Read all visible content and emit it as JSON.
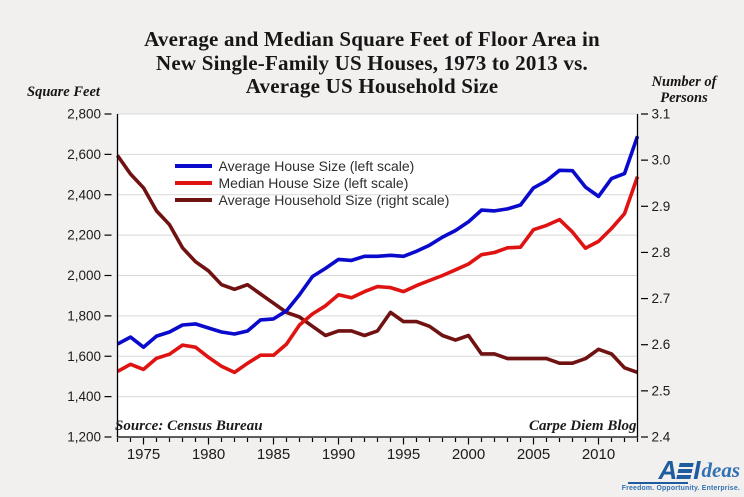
{
  "title": {
    "line1": "Average and Median Square Feet of Floor Area in",
    "line2": "New Single-Family US Houses, 1973 to 2013 vs.",
    "line3": "Average US Household Size"
  },
  "axis_unit_labels": {
    "left": "Square Feet",
    "right_line1": "Number of",
    "right_line2": "Persons"
  },
  "footer": {
    "source": "Source: Census Bureau",
    "blog": "Carpe Diem Blog"
  },
  "logo": {
    "brand_a": "A",
    "brand_i": "I",
    "brand_suffix": "deas",
    "tagline": "Freedom. Opportunity. Enterprise."
  },
  "colors": {
    "background": "#f2f0ee",
    "plot_background": "#ffffff",
    "gridline": "#d8d8d8",
    "axis": "#000000",
    "text": "#1b1b1b",
    "legend_text": "#2e2e2e",
    "average_line": "#0a0acd",
    "median_line": "#e01313",
    "household_line": "#701212",
    "logo_dark_blue": "#1d5c9e",
    "logo_medium_blue": "#3070b3"
  },
  "chart_data": {
    "type": "line",
    "title": "Average and Median Square Feet of Floor Area in New Single-Family US Houses, 1973 to 2013 vs. Average US Household Size",
    "grid": true,
    "legend_position": "top-left-inside",
    "x": [
      1973,
      1974,
      1975,
      1976,
      1977,
      1978,
      1979,
      1980,
      1981,
      1982,
      1983,
      1984,
      1985,
      1986,
      1987,
      1988,
      1989,
      1990,
      1991,
      1992,
      1993,
      1994,
      1995,
      1996,
      1997,
      1998,
      1999,
      2000,
      2001,
      2002,
      2003,
      2004,
      2005,
      2006,
      2007,
      2008,
      2009,
      2010,
      2011,
      2012,
      2013
    ],
    "x_tick_years": [
      1975,
      1980,
      1985,
      1990,
      1995,
      2000,
      2005,
      2010
    ],
    "x_tick_labels": [
      "1975",
      "1980",
      "1985",
      "1990",
      "1995",
      "2000",
      "2005",
      "2010"
    ],
    "left_axis": {
      "title": "Square Feet",
      "min": 1200,
      "max": 2800,
      "tick_values": [
        1200,
        1400,
        1600,
        1800,
        2000,
        2200,
        2400,
        2600,
        2800
      ],
      "tick_labels": [
        "1,200",
        "1,400",
        "1,600",
        "1,800",
        "2,000",
        "2,200",
        "2,400",
        "2,600",
        "2,800"
      ]
    },
    "right_axis": {
      "title": "Number of Persons",
      "min": 2.4,
      "max": 3.1,
      "tick_values": [
        2.4,
        2.5,
        2.6,
        2.7,
        2.8,
        2.9,
        3.0,
        3.1
      ],
      "tick_labels": [
        "2.4",
        "2.5",
        "2.6",
        "2.7",
        "2.8",
        "2.9",
        "3.0",
        "3.1"
      ]
    },
    "series": [
      {
        "name": "Average House Size (left scale)",
        "axis": "left",
        "color": "#0a0acd",
        "values": [
          1660,
          1695,
          1645,
          1700,
          1720,
          1755,
          1760,
          1740,
          1720,
          1710,
          1725,
          1780,
          1785,
          1825,
          1905,
          1995,
          2035,
          2080,
          2075,
          2095,
          2095,
          2100,
          2095,
          2120,
          2150,
          2190,
          2223,
          2266,
          2324,
          2320,
          2330,
          2349,
          2434,
          2469,
          2521,
          2519,
          2438,
          2392,
          2480,
          2505,
          2690
        ]
      },
      {
        "name": "Median House Size (left scale)",
        "axis": "left",
        "color": "#e01313",
        "values": [
          1525,
          1560,
          1535,
          1590,
          1610,
          1655,
          1645,
          1595,
          1550,
          1520,
          1565,
          1605,
          1605,
          1660,
          1755,
          1810,
          1850,
          1905,
          1890,
          1920,
          1945,
          1940,
          1920,
          1950,
          1975,
          2000,
          2028,
          2057,
          2103,
          2114,
          2137,
          2140,
          2227,
          2248,
          2277,
          2215,
          2135,
          2169,
          2233,
          2306,
          2490
        ]
      },
      {
        "name": "Average Household Size (right scale)",
        "axis": "right",
        "color": "#701212",
        "values": [
          3.01,
          2.97,
          2.94,
          2.89,
          2.86,
          2.81,
          2.78,
          2.76,
          2.73,
          2.72,
          2.73,
          2.71,
          2.69,
          2.67,
          2.66,
          2.64,
          2.62,
          2.63,
          2.63,
          2.62,
          2.63,
          2.67,
          2.65,
          2.65,
          2.64,
          2.62,
          2.61,
          2.62,
          2.58,
          2.58,
          2.57,
          2.57,
          2.57,
          2.57,
          2.56,
          2.56,
          2.57,
          2.59,
          2.58,
          2.55,
          2.54
        ]
      }
    ]
  }
}
